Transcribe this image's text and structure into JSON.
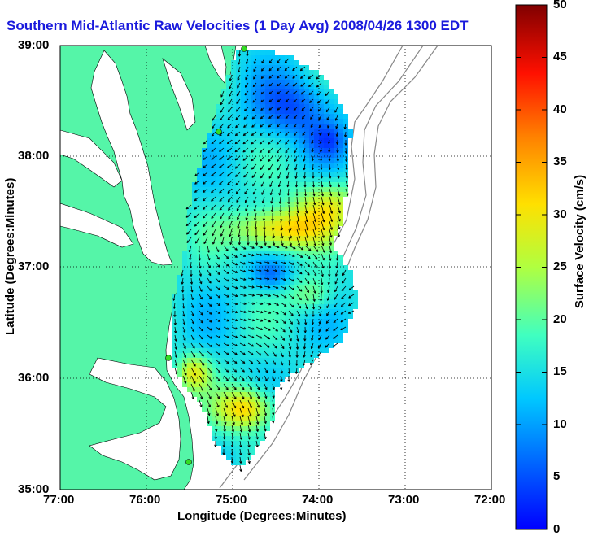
{
  "title": "Southern Mid-Atlantic Raw Velocities (1 Day Avg) 2008/04/26 1300 EDT",
  "axes": {
    "xlabel": "Longitude (Degrees:Minutes)",
    "ylabel": "Latitude (Degrees:Minutes)",
    "x_ticks": [
      "77:00",
      "76:00",
      "75:00",
      "74:00",
      "73:00",
      "72:00"
    ],
    "y_ticks": [
      "39:00",
      "38:00",
      "37:00",
      "36:00",
      "35:00"
    ],
    "x_range_deg_west": [
      77,
      72
    ],
    "y_range_deg_north": [
      35,
      39
    ],
    "grid": "dotted"
  },
  "colorbar": {
    "label": "Surface Velocity (cm/s)",
    "ticks": [
      "50",
      "45",
      "40",
      "35",
      "30",
      "25",
      "20",
      "15",
      "10",
      "5",
      "0"
    ],
    "range": [
      0,
      50
    ],
    "colormap": "jet"
  },
  "colors": {
    "land": "#55f5a8",
    "water": "#ffffff",
    "title": "#1a1adc",
    "stations": "#33dd22"
  }
}
